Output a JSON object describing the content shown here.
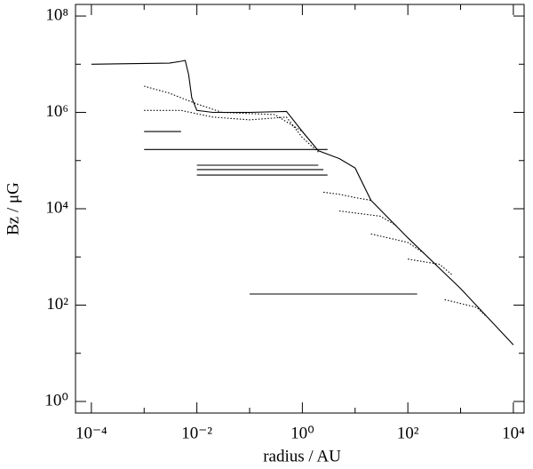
{
  "chart_data": {
    "type": "line",
    "x_label": "radius / AU",
    "y_label": "Bz / μG",
    "xscale": "log",
    "yscale": "log",
    "xlim": [
      5e-05,
      16000
    ],
    "ylim": [
      0.575,
      174000000
    ],
    "xticks": [
      {
        "value": 0.0001,
        "label": "10⁻⁴"
      },
      {
        "value": 0.01,
        "label": "10⁻²"
      },
      {
        "value": 1,
        "label": "10⁰"
      },
      {
        "value": 100,
        "label": "10²"
      },
      {
        "value": 10000,
        "label": "10⁴"
      }
    ],
    "yticks": [
      {
        "value": 1,
        "label": "10⁰"
      },
      {
        "value": 100,
        "label": "10²"
      },
      {
        "value": 10000,
        "label": "10⁴"
      },
      {
        "value": 1000000,
        "label": "10⁶"
      },
      {
        "value": 100000000,
        "label": "10⁸"
      }
    ],
    "xminorticks": [
      0.001,
      0.1,
      10,
      1000
    ],
    "yminorticks": [
      10,
      1000,
      100000,
      10000000
    ],
    "series": [
      {
        "color": "#000000",
        "style": "solid",
        "x": [
          0.0001,
          0.003,
          0.005,
          0.006,
          0.007,
          0.008,
          0.01,
          0.02,
          0.1,
          0.5,
          1,
          2,
          5,
          10,
          20,
          100,
          1000,
          10000
        ],
        "values": [
          10000000,
          10500000,
          11500000,
          12000000,
          6000000,
          2000000,
          1100000,
          1000000,
          1000000,
          1050000,
          400000,
          160000,
          110000,
          70000,
          15000,
          2500,
          220,
          15
        ]
      },
      {
        "color": "#000000",
        "style": "dotted",
        "x": [
          0.001,
          0.003,
          0.01,
          0.03,
          0.3,
          1,
          2
        ],
        "values": [
          3500000,
          2500000,
          1500000,
          1000000,
          900000,
          400000,
          160000
        ]
      },
      {
        "color": "#000000",
        "style": "dotted",
        "x": [
          0.001,
          0.005,
          0.02,
          0.1,
          0.5,
          1,
          2
        ],
        "values": [
          1100000,
          1100000,
          800000,
          700000,
          800000,
          300000,
          150000
        ]
      },
      {
        "color": "#000000",
        "style": "dotted",
        "x": [
          2.5,
          5,
          10,
          20
        ],
        "values": [
          22000,
          20000,
          17000,
          15000
        ]
      },
      {
        "color": "#000000",
        "style": "dotted",
        "x": [
          5,
          30,
          60
        ],
        "values": [
          9000,
          7000,
          4500
        ]
      },
      {
        "color": "#000000",
        "style": "dotted",
        "x": [
          20,
          100,
          200
        ],
        "values": [
          3000,
          2000,
          1200
        ]
      },
      {
        "color": "#000000",
        "style": "dotted",
        "x": [
          100,
          400,
          700
        ],
        "values": [
          900,
          700,
          420
        ]
      },
      {
        "color": "#000000",
        "style": "dotted",
        "x": [
          500,
          2000,
          3000
        ],
        "values": [
          130,
          90,
          60
        ]
      },
      {
        "color": "#000000",
        "style": "solid",
        "x": [
          0.001,
          3
        ],
        "values": [
          170000,
          170000
        ]
      },
      {
        "color": "#000000",
        "style": "solid",
        "x": [
          0.001,
          0.005
        ],
        "values": [
          400000,
          400000
        ]
      },
      {
        "color": "#000000",
        "style": "solid",
        "x": [
          0.01,
          2
        ],
        "values": [
          80000,
          80000
        ]
      },
      {
        "color": "#000000",
        "style": "solid",
        "x": [
          0.01,
          2.5
        ],
        "values": [
          65000,
          65000
        ]
      },
      {
        "color": "#000000",
        "style": "solid",
        "x": [
          0.01,
          3
        ],
        "values": [
          50000,
          50000
        ]
      },
      {
        "color": "#000000",
        "style": "solid",
        "x": [
          0.1,
          150
        ],
        "values": [
          170,
          170
        ]
      }
    ]
  }
}
